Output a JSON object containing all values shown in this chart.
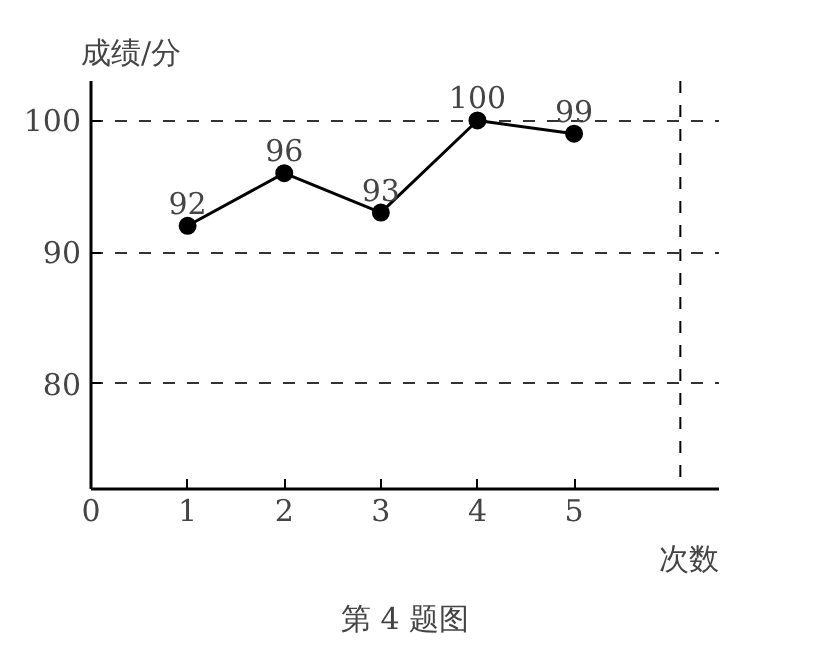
{
  "chart_data": {
    "type": "line",
    "xlabel": "次数",
    "ylabel": "成绩/分",
    "annotations": [
      "第 4 题图"
    ],
    "x": [
      1,
      2,
      3,
      4,
      5
    ],
    "series": [
      {
        "color": "#000000",
        "values": [
          92,
          96,
          93,
          100,
          99
        ]
      }
    ],
    "xlim": [
      0,
      6.5
    ],
    "xticks": [
      0,
      1,
      2,
      3,
      4,
      5
    ],
    "ylim": [
      72,
      103
    ],
    "yticks": [
      80,
      90,
      100
    ],
    "ref_lines": [
      {
        "axis": "x",
        "value": 6.1,
        "line_style": "dashed",
        "color": "#000000"
      }
    ],
    "grid": "y",
    "marker": "circle",
    "line_style": "solid",
    "data_labels": true
  }
}
